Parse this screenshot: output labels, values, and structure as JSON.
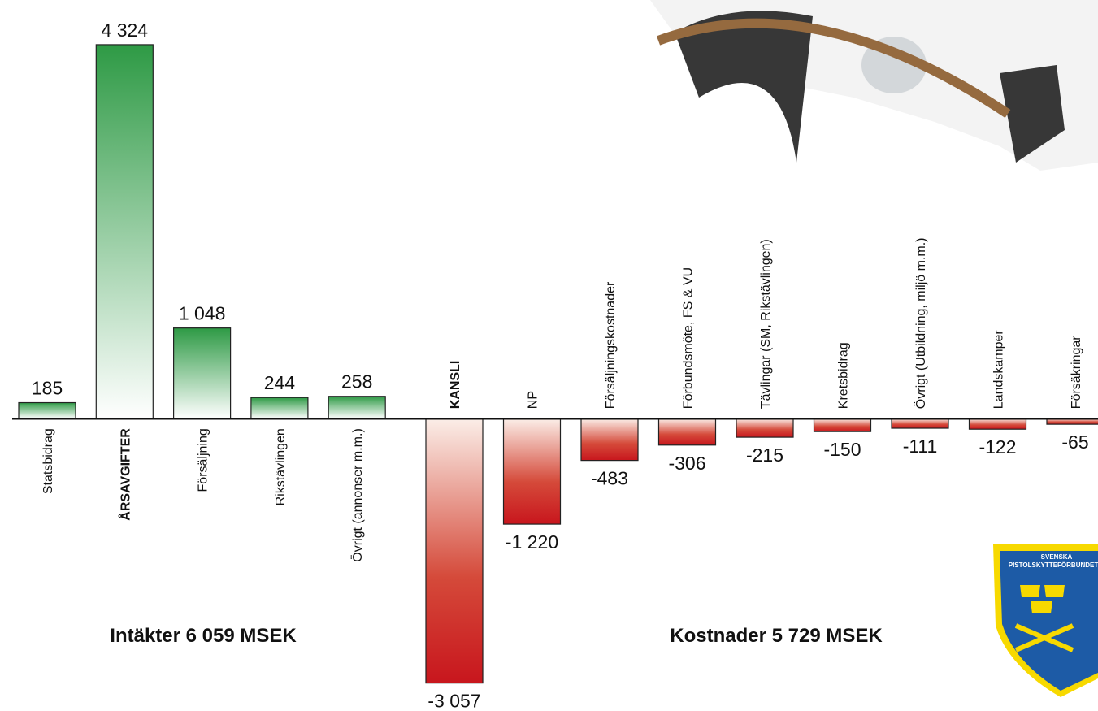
{
  "chart_data": {
    "type": "bar",
    "categories": [
      "Statsbidrag",
      "ÅRSAVGIFTER",
      "Försäljning",
      "Rikstävlingen",
      "Övrigt (annonser m.m.)",
      "KANSLI",
      "NP",
      "Försäljningskostnader",
      "Förbundsmöte, FS & VU",
      "Tävlingar (SM, Rikstävlingen)",
      "Kretsbidrag",
      "Övrigt (Utbildning, miljö m.m.)",
      "Landskamper",
      "Försäkringar"
    ],
    "values": [
      185,
      4324,
      1048,
      244,
      258,
      -3057,
      -1220,
      -483,
      -306,
      -215,
      -150,
      -111,
      -122,
      -65
    ],
    "value_labels": [
      "185",
      "4 324",
      "1 048",
      "244",
      "258",
      "-3 057",
      "-1 220",
      "-483",
      "-306",
      "-215",
      "-150",
      "-111",
      "-122",
      "-65"
    ],
    "ylim": [
      -3380,
      4840
    ],
    "colors": {
      "positive": "#2e9a45",
      "negative": "#c8161d"
    },
    "annotations": [
      "Intäkter 6 059 MSEK",
      "Kostnader 5 729 MSEK"
    ],
    "logo_text": [
      "SVENSKA",
      "PISTOLSKYTTEFÖRBUNDET"
    ]
  }
}
